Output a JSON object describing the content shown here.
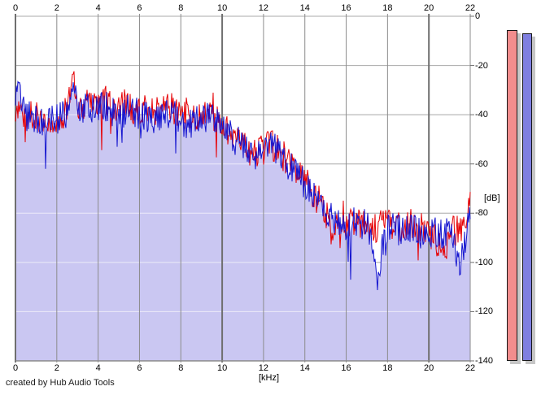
{
  "credit": "created by Hub Audio Tools",
  "chart_data": {
    "type": "line",
    "title": "",
    "xlabel": "[kHz]",
    "ylabel": "[dB]",
    "x_unit": "kHz",
    "y_unit": "dB",
    "x_range": [
      0,
      22
    ],
    "y_range": [
      -140,
      0
    ],
    "x_ticks": [
      0,
      2,
      4,
      6,
      8,
      10,
      12,
      14,
      16,
      18,
      20,
      22
    ],
    "y_ticks": [
      0,
      -20,
      -40,
      -60,
      -80,
      -100,
      -120,
      -140
    ],
    "grid": true,
    "legend": "none",
    "colors": {
      "plot_background": "#ffffff",
      "fill_area": "#cac7f2",
      "grid_vertical_minor": "#8c8c8c",
      "grid_vertical_major": "#6f6f6f",
      "grid_horizontal": "#a8a8a8",
      "grid_horizontal_on_fill": "#ecebf9",
      "bottom_border": "#8a8a8a"
    },
    "series": [
      {
        "name": "spectrum-red",
        "color": "#e60004",
        "noise_db": 6.5,
        "anchors": [
          [
            0,
            -40
          ],
          [
            0.2,
            -37
          ],
          [
            0.5,
            -42
          ],
          [
            0.9,
            -40
          ],
          [
            1.3,
            -44
          ],
          [
            1.7,
            -41
          ],
          [
            2.1,
            -42
          ],
          [
            2.5,
            -38
          ],
          [
            2.7,
            -30
          ],
          [
            2.78,
            -19
          ],
          [
            2.9,
            -33
          ],
          [
            3.2,
            -37
          ],
          [
            3.6,
            -34
          ],
          [
            4,
            -36
          ],
          [
            4.4,
            -34
          ],
          [
            4.8,
            -38
          ],
          [
            5.2,
            -36
          ],
          [
            5.6,
            -37
          ],
          [
            6,
            -39
          ],
          [
            6.5,
            -37
          ],
          [
            7,
            -39
          ],
          [
            7.5,
            -36
          ],
          [
            8,
            -40
          ],
          [
            8.5,
            -39
          ],
          [
            9,
            -41
          ],
          [
            9.5,
            -40
          ],
          [
            10,
            -44
          ],
          [
            10.5,
            -48
          ],
          [
            11,
            -52
          ],
          [
            11.5,
            -56
          ],
          [
            12,
            -54
          ],
          [
            12.4,
            -52
          ],
          [
            12.8,
            -55
          ],
          [
            13.2,
            -59
          ],
          [
            13.6,
            -63
          ],
          [
            14,
            -67
          ],
          [
            14.5,
            -73
          ],
          [
            15,
            -79
          ],
          [
            15.3,
            -88
          ],
          [
            15.7,
            -83
          ],
          [
            16,
            -85
          ],
          [
            16.5,
            -82
          ],
          [
            17,
            -84
          ],
          [
            17.5,
            -86
          ],
          [
            18,
            -84
          ],
          [
            18.5,
            -86
          ],
          [
            19,
            -84
          ],
          [
            19.5,
            -86
          ],
          [
            20,
            -87
          ],
          [
            20.5,
            -93
          ],
          [
            20.7,
            -99
          ],
          [
            21,
            -88
          ],
          [
            21.5,
            -87
          ],
          [
            21.8,
            -85
          ],
          [
            22,
            -76
          ]
        ]
      },
      {
        "name": "spectrum-blue",
        "color": "#1515cf",
        "fill": true,
        "noise_db": 6.5,
        "anchors": [
          [
            0,
            -33
          ],
          [
            0.15,
            -27
          ],
          [
            0.4,
            -39
          ],
          [
            0.8,
            -42
          ],
          [
            1.2,
            -43
          ],
          [
            1.6,
            -42
          ],
          [
            2,
            -42
          ],
          [
            2.4,
            -40
          ],
          [
            2.7,
            -32
          ],
          [
            2.8,
            -25
          ],
          [
            3,
            -36
          ],
          [
            3.4,
            -38
          ],
          [
            3.8,
            -37
          ],
          [
            4.2,
            -36
          ],
          [
            4.6,
            -38
          ],
          [
            5,
            -40
          ],
          [
            5.5,
            -38
          ],
          [
            6,
            -40
          ],
          [
            6.5,
            -42
          ],
          [
            7,
            -40
          ],
          [
            7.5,
            -39
          ],
          [
            8,
            -42
          ],
          [
            8.5,
            -44
          ],
          [
            9,
            -42
          ],
          [
            9.5,
            -41
          ],
          [
            10,
            -45
          ],
          [
            10.5,
            -49
          ],
          [
            11,
            -53
          ],
          [
            11.5,
            -57
          ],
          [
            12,
            -55
          ],
          [
            12.4,
            -53
          ],
          [
            12.8,
            -56
          ],
          [
            13.2,
            -60
          ],
          [
            13.6,
            -64
          ],
          [
            14,
            -68
          ],
          [
            14.5,
            -74
          ],
          [
            15,
            -80
          ],
          [
            15.5,
            -83
          ],
          [
            16,
            -85
          ],
          [
            16.5,
            -83
          ],
          [
            17,
            -85
          ],
          [
            17.4,
            -98
          ],
          [
            17.55,
            -108
          ],
          [
            17.8,
            -90
          ],
          [
            18,
            -85
          ],
          [
            18.5,
            -87
          ],
          [
            19,
            -85
          ],
          [
            19.5,
            -87
          ],
          [
            20,
            -87
          ],
          [
            20.5,
            -89
          ],
          [
            21,
            -88
          ],
          [
            21.5,
            -100
          ],
          [
            21.7,
            -93
          ],
          [
            22,
            -82
          ]
        ]
      }
    ],
    "level_meters": [
      {
        "name": "left",
        "color": "#f28d8d",
        "level_db": -5.6
      },
      {
        "name": "right",
        "color": "#7f7fe0",
        "level_db": -6.9
      }
    ]
  }
}
